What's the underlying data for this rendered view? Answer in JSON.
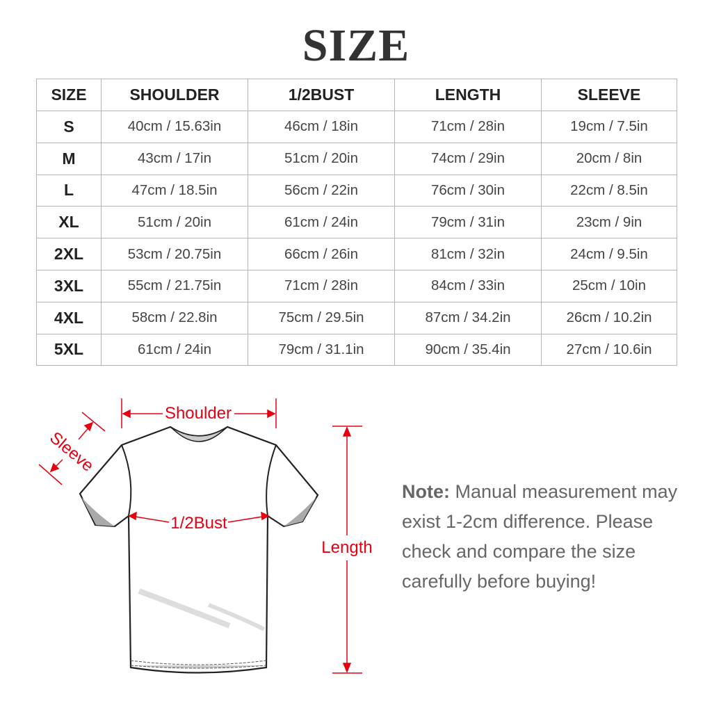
{
  "title": "SIZE",
  "table": {
    "headers": [
      "SIZE",
      "SHOULDER",
      "1/2BUST",
      "LENGTH",
      "SLEEVE"
    ],
    "rows": [
      [
        "S",
        "40cm / 15.63in",
        "46cm / 18in",
        "71cm / 28in",
        "19cm / 7.5in"
      ],
      [
        "M",
        "43cm / 17in",
        "51cm / 20in",
        "74cm / 29in",
        "20cm / 8in"
      ],
      [
        "L",
        "47cm / 18.5in",
        "56cm / 22in",
        "76cm / 30in",
        "22cm / 8.5in"
      ],
      [
        "XL",
        "51cm / 20in",
        "61cm / 24in",
        "79cm / 31in",
        "23cm / 9in"
      ],
      [
        "2XL",
        "53cm / 20.75in",
        "66cm / 26in",
        "81cm / 32in",
        "24cm / 9.5in"
      ],
      [
        "3XL",
        "55cm / 21.75in",
        "71cm / 28in",
        "84cm / 33in",
        "25cm / 10in"
      ],
      [
        "4XL",
        "58cm / 22.8in",
        "75cm / 29.5in",
        "87cm / 34.2in",
        "26cm / 10.2in"
      ],
      [
        "5XL",
        "61cm / 24in",
        "79cm / 31.1in",
        "90cm / 35.4in",
        "27cm / 10.6in"
      ]
    ]
  },
  "diagram": {
    "shoulder": "Shoulder",
    "sleeve": "Sleeve",
    "bust": "1/2Bust",
    "length": "Length",
    "accent": "#e60012"
  },
  "note": {
    "label": "Note:",
    "text": "Manual measurement may exist 1-2cm difference. Please check and compare the size carefully before buying!"
  }
}
